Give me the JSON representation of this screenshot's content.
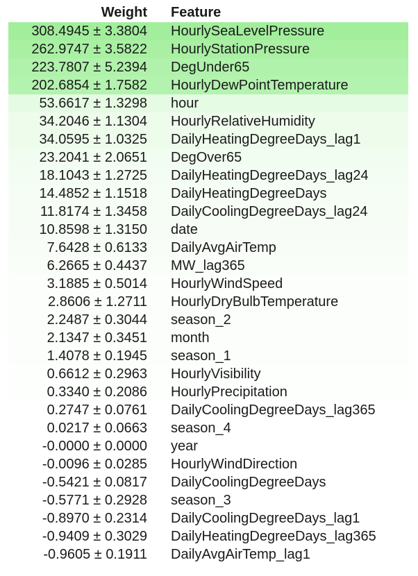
{
  "headers": {
    "weight": "Weight",
    "feature": "Feature"
  },
  "rows": [
    {
      "weight": "308.4945 ± 3.3804",
      "feature": "HourlySeaLevelPressure",
      "bg": "#a2ee9c"
    },
    {
      "weight": "262.9747 ± 3.5822",
      "feature": "HourlyStationPressure",
      "bg": "#a9f0a3"
    },
    {
      "weight": "223.7807 ± 5.2394",
      "feature": "DegUnder65",
      "bg": "#b0f2ab"
    },
    {
      "weight": "202.6854 ± 1.7582",
      "feature": "HourlyDewPointTemperature",
      "bg": "#b4f3af"
    },
    {
      "weight": "53.6617 ± 1.3298",
      "feature": "hour",
      "bg": "#e5fbe3"
    },
    {
      "weight": "34.2046 ± 1.1304",
      "feature": "HourlyRelativeHumidity",
      "bg": "#eefcec"
    },
    {
      "weight": "34.0595 ± 1.0325",
      "feature": "DailyHeatingDegreeDays_lag1",
      "bg": "#eefcec"
    },
    {
      "weight": "23.2041 ± 2.0651",
      "feature": "DegOver65",
      "bg": "#f2fdf1"
    },
    {
      "weight": "18.1043 ± 1.2725",
      "feature": "DailyHeatingDegreeDays_lag24",
      "bg": "#f4fdf3"
    },
    {
      "weight": "14.4852 ± 1.1518",
      "feature": "DailyHeatingDegreeDays",
      "bg": "#f5fdf4"
    },
    {
      "weight": "11.8174 ± 1.3458",
      "feature": "DailyCoolingDegreeDays_lag24",
      "bg": "#f6fdf5"
    },
    {
      "weight": "10.8598 ± 1.3150",
      "feature": "date",
      "bg": "#f7fdf6"
    },
    {
      "weight": "7.6428 ± 0.6133",
      "feature": "DailyAvgAirTemp",
      "bg": "#f8fef7"
    },
    {
      "weight": "6.2665 ± 0.4437",
      "feature": "MW_lag365",
      "bg": "#f9fef8"
    },
    {
      "weight": "3.1885 ± 0.5014",
      "feature": "HourlyWindSpeed",
      "bg": "#fbfefa"
    },
    {
      "weight": "2.8606 ± 1.2711",
      "feature": "HourlyDryBulbTemperature",
      "bg": "#fbfefa"
    },
    {
      "weight": "2.2487 ± 0.3044",
      "feature": "season_2",
      "bg": "#fbfefb"
    },
    {
      "weight": "2.1347 ± 0.3451",
      "feature": "month",
      "bg": "#fbfefb"
    },
    {
      "weight": "1.4078 ± 0.1945",
      "feature": "season_1",
      "bg": "#fcfefc"
    },
    {
      "weight": "0.6612 ± 0.2963",
      "feature": "HourlyVisibility",
      "bg": "#fdfffd"
    },
    {
      "weight": "0.3340 ± 0.2086",
      "feature": "HourlyPrecipitation",
      "bg": "#fdfffd"
    },
    {
      "weight": "0.2747 ± 0.0761",
      "feature": "DailyCoolingDegreeDays_lag365",
      "bg": "#fefffe"
    },
    {
      "weight": "0.0217 ± 0.0663",
      "feature": "season_4",
      "bg": "#fefffe"
    },
    {
      "weight": "-0.0000 ± 0.0000",
      "feature": "year",
      "bg": "#ffffff"
    },
    {
      "weight": "-0.0096 ± 0.0285",
      "feature": "HourlyWindDirection",
      "bg": "#ffffff"
    },
    {
      "weight": "-0.5421 ± 0.0817",
      "feature": "DailyCoolingDegreeDays",
      "bg": "#ffffff"
    },
    {
      "weight": "-0.5771 ± 0.2928",
      "feature": "season_3",
      "bg": "#ffffff"
    },
    {
      "weight": "-0.8970 ± 0.2314",
      "feature": "DailyCoolingDegreeDays_lag1",
      "bg": "#ffffff"
    },
    {
      "weight": "-0.9409 ± 0.3029",
      "feature": "DailyHeatingDegreeDays_lag365",
      "bg": "#ffffff"
    },
    {
      "weight": "-0.9605 ± 0.1911",
      "feature": "DailyAvgAirTemp_lag1",
      "bg": "#ffffff"
    }
  ]
}
